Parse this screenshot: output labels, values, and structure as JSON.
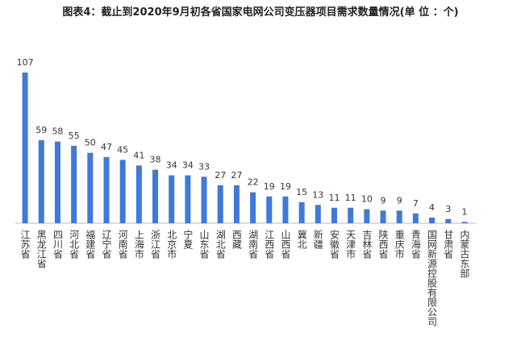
{
  "chart_data": {
    "type": "bar",
    "title": "图表4：截止到2020年9月初各省国家电网公司变压器项目需求数量情况(单 位 ：个)",
    "categories": [
      "江苏省",
      "黑龙江省",
      "四川省",
      "河北省",
      "福建省",
      "辽宁省",
      "河南省",
      "上海市",
      "浙江省",
      "北京市",
      "宁夏",
      "山东省",
      "湖北省",
      "西藏",
      "湖南省",
      "江西省",
      "山西省",
      "冀北",
      "新疆",
      "安徽省",
      "天津市",
      "吉林省",
      "陕西省",
      "重庆市",
      "青海省",
      "国网新源控股有限公司",
      "甘肃省",
      "内蒙古东部"
    ],
    "values": [
      107,
      59,
      58,
      55,
      50,
      47,
      45,
      41,
      38,
      34,
      34,
      33,
      27,
      27,
      22,
      19,
      19,
      15,
      13,
      11,
      11,
      10,
      9,
      9,
      7,
      4,
      3,
      1
    ],
    "color": "#3f79d9",
    "ylim": [
      0,
      107
    ]
  }
}
